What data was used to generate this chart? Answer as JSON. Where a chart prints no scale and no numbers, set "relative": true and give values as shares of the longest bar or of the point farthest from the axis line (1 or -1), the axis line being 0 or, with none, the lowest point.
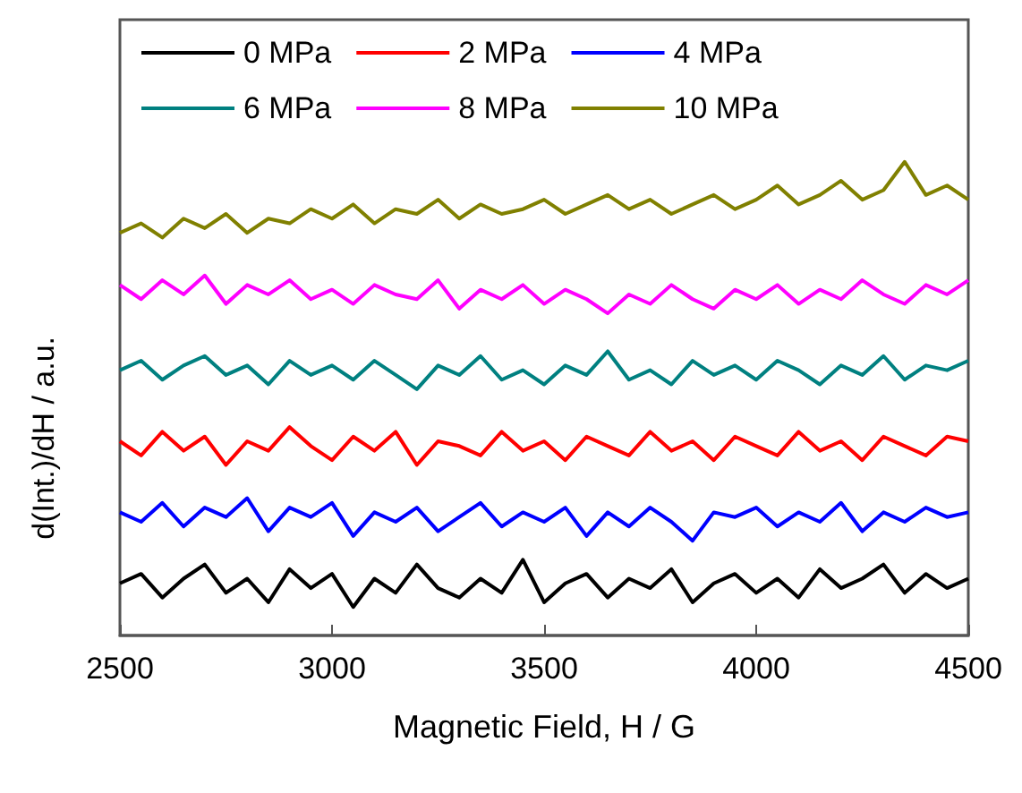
{
  "chart_data": {
    "type": "line",
    "relative": true,
    "xlabel": "Magnetic Field, H / G",
    "ylabel": "d(Int.)/dH / a.u.",
    "xlim": [
      2500,
      4500
    ],
    "xticks": [
      2500,
      3000,
      3500,
      4000,
      4500
    ],
    "x": [
      2500,
      2550,
      2600,
      2650,
      2700,
      2750,
      2800,
      2850,
      2900,
      2950,
      3000,
      3050,
      3100,
      3150,
      3200,
      3250,
      3300,
      3350,
      3400,
      3450,
      3500,
      3550,
      3600,
      3650,
      3700,
      3750,
      3800,
      3850,
      3900,
      3950,
      4000,
      4050,
      4100,
      4150,
      4200,
      4250,
      4300,
      4350,
      4400,
      4450,
      4500
    ],
    "legend": "top",
    "grid": false,
    "line_style": "solid",
    "marker": "none",
    "series": [
      {
        "name": "0 MPa",
        "color": "#000000",
        "values": [
          0.11,
          0.13,
          0.08,
          0.12,
          0.15,
          0.09,
          0.12,
          0.07,
          0.14,
          0.1,
          0.13,
          0.06,
          0.12,
          0.09,
          0.15,
          0.1,
          0.08,
          0.12,
          0.09,
          0.16,
          0.07,
          0.11,
          0.13,
          0.08,
          0.12,
          0.1,
          0.14,
          0.07,
          0.11,
          0.13,
          0.09,
          0.12,
          0.08,
          0.14,
          0.1,
          0.12,
          0.15,
          0.09,
          0.13,
          0.1,
          0.12
        ]
      },
      {
        "name": "2 MPa",
        "color": "#ff0000",
        "values": [
          0.41,
          0.38,
          0.43,
          0.39,
          0.42,
          0.36,
          0.41,
          0.39,
          0.44,
          0.4,
          0.37,
          0.42,
          0.39,
          0.43,
          0.36,
          0.41,
          0.4,
          0.38,
          0.43,
          0.39,
          0.41,
          0.37,
          0.42,
          0.4,
          0.38,
          0.43,
          0.39,
          0.41,
          0.37,
          0.42,
          0.4,
          0.38,
          0.43,
          0.39,
          0.41,
          0.37,
          0.42,
          0.4,
          0.38,
          0.42,
          0.41
        ]
      },
      {
        "name": "4 MPa",
        "color": "#0000ff",
        "values": [
          0.26,
          0.24,
          0.28,
          0.23,
          0.27,
          0.25,
          0.29,
          0.22,
          0.27,
          0.25,
          0.28,
          0.21,
          0.26,
          0.24,
          0.27,
          0.22,
          0.25,
          0.28,
          0.23,
          0.26,
          0.24,
          0.27,
          0.21,
          0.26,
          0.23,
          0.27,
          0.24,
          0.2,
          0.26,
          0.25,
          0.27,
          0.23,
          0.26,
          0.24,
          0.28,
          0.22,
          0.26,
          0.24,
          0.27,
          0.25,
          0.26
        ]
      },
      {
        "name": "6 MPa",
        "color": "#008080",
        "values": [
          0.56,
          0.58,
          0.54,
          0.57,
          0.59,
          0.55,
          0.57,
          0.53,
          0.58,
          0.55,
          0.57,
          0.54,
          0.58,
          0.55,
          0.52,
          0.57,
          0.55,
          0.59,
          0.54,
          0.56,
          0.53,
          0.57,
          0.55,
          0.6,
          0.54,
          0.56,
          0.53,
          0.58,
          0.55,
          0.57,
          0.54,
          0.58,
          0.56,
          0.53,
          0.57,
          0.55,
          0.59,
          0.54,
          0.57,
          0.56,
          0.58
        ]
      },
      {
        "name": "8 MPa",
        "color": "#ff00ff",
        "values": [
          0.74,
          0.71,
          0.75,
          0.72,
          0.76,
          0.7,
          0.74,
          0.72,
          0.75,
          0.71,
          0.73,
          0.7,
          0.74,
          0.72,
          0.71,
          0.75,
          0.69,
          0.73,
          0.71,
          0.74,
          0.7,
          0.73,
          0.71,
          0.68,
          0.72,
          0.7,
          0.74,
          0.71,
          0.69,
          0.73,
          0.71,
          0.74,
          0.7,
          0.73,
          0.71,
          0.75,
          0.72,
          0.7,
          0.74,
          0.72,
          0.75
        ]
      },
      {
        "name": "10 MPa",
        "color": "#808000",
        "values": [
          0.85,
          0.87,
          0.84,
          0.88,
          0.86,
          0.89,
          0.85,
          0.88,
          0.87,
          0.9,
          0.88,
          0.91,
          0.87,
          0.9,
          0.89,
          0.92,
          0.88,
          0.91,
          0.89,
          0.9,
          0.92,
          0.89,
          0.91,
          0.93,
          0.9,
          0.92,
          0.89,
          0.91,
          0.93,
          0.9,
          0.92,
          0.95,
          0.91,
          0.93,
          0.96,
          0.92,
          0.94,
          1.0,
          0.93,
          0.95,
          0.92
        ]
      }
    ]
  }
}
